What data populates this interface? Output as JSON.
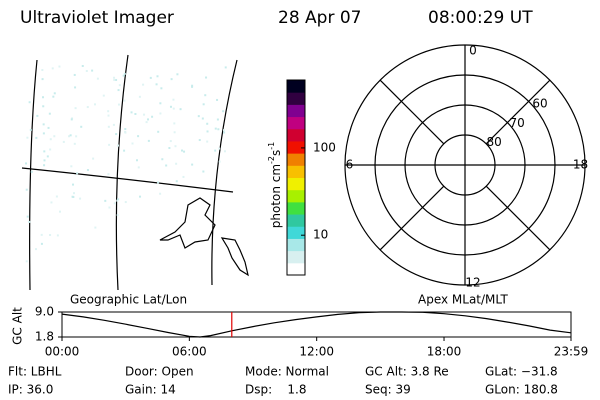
{
  "header": {
    "title": "Ultraviolet Imager",
    "date": "28 Apr 07",
    "time": "08:00:29 UT"
  },
  "colorbar": {
    "label": "photon cm",
    "exp1": "-2",
    "unit2": "s",
    "exp2": "-1",
    "log": true,
    "lim": [
      3.5,
      600
    ],
    "ticks": [
      10,
      100
    ],
    "colors": [
      "#ffffff",
      "#d8f0f0",
      "#a8e8e8",
      "#40d8d8",
      "#30c8a0",
      "#40e040",
      "#a8f000",
      "#f0f000",
      "#f8c000",
      "#f08000",
      "#f01000",
      "#d00030",
      "#c00080",
      "#800090",
      "#300040",
      "#000020"
    ]
  },
  "polar": {
    "mlt_labels": [
      12,
      6,
      0,
      18
    ],
    "lat_labels": [
      80,
      70,
      60
    ]
  },
  "track": {
    "left_label": "Geographic Lat/Lon",
    "right_label": "Apex MLat/MLT",
    "ylabel": "GC Alt",
    "ylim": [
      1.8,
      9.0
    ],
    "yticks": [
      1.8,
      {
        "value": 9.0,
        "label": "9.0"
      }
    ],
    "xlim": [
      0,
      23.983
    ],
    "xticks": [
      {
        "value": 0,
        "label": "00:00"
      },
      {
        "value": 6,
        "label": "06:00"
      },
      {
        "value": 12,
        "label": "12:00"
      },
      {
        "value": 18,
        "label": "18:00"
      },
      {
        "value": 23.983,
        "label": "23:59"
      }
    ],
    "x": [
      0,
      1,
      2,
      3,
      4,
      5,
      6,
      6.5,
      7,
      8,
      9,
      10,
      11,
      12,
      13,
      14,
      15,
      16,
      17,
      18,
      19,
      20,
      21,
      22,
      23,
      23.983
    ],
    "values": [
      8.4,
      7.6,
      6.6,
      5.5,
      4.3,
      3.1,
      2.0,
      1.8,
      2.2,
      3.6,
      4.8,
      5.9,
      6.8,
      7.6,
      8.3,
      8.8,
      9.0,
      9.0,
      8.9,
      8.5,
      7.9,
      7.1,
      6.1,
      5.0,
      3.8,
      3.0
    ],
    "marker": 8.0,
    "marker_color": "#e00000",
    "color": "#000000"
  },
  "status": [
    [
      "Flt: LBHL",
      "Door: Open",
      "Mode: Normal",
      "GC Alt: 3.8 Re",
      "GLat: −31.8"
    ],
    [
      "IP: 36.0",
      "Gain: 14",
      "Dsp:    1.8",
      "Seq: 39",
      "GLon: 180.8"
    ]
  ]
}
